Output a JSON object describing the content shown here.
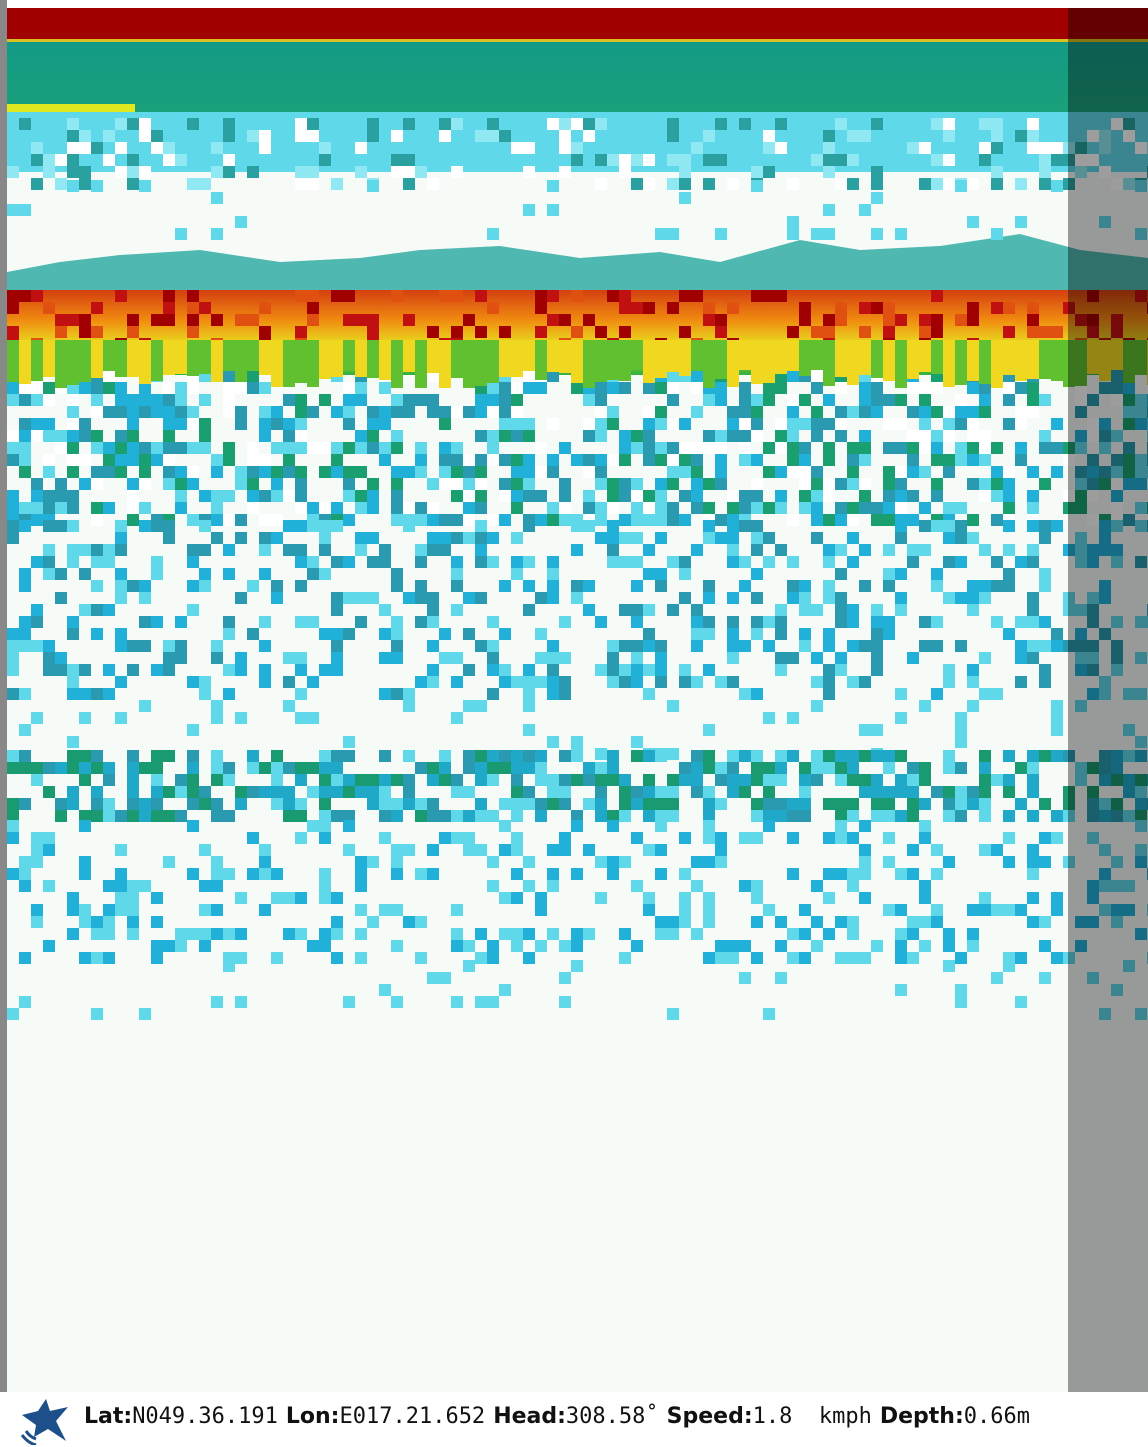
{
  "status_bar": {
    "items": [
      {
        "label": "Lat:",
        "value": "N049.36.191"
      },
      {
        "label": "Lon:",
        "value": "E017.21.652"
      },
      {
        "label": "Head:",
        "value": "308.58˚"
      },
      {
        "label": "Speed:",
        "value": "1.8  kmph"
      },
      {
        "label": "Depth:",
        "value": "0.66m"
      }
    ]
  }
}
